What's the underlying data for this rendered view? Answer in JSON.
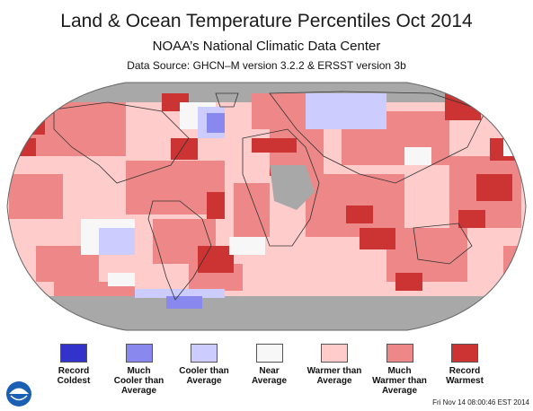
{
  "header": {
    "title": "Land & Ocean Temperature Percentiles Oct 2014",
    "subtitle": "NOAA’s National Climatic Data Center",
    "source": "Data Source: GHCN–M version 3.2.2 & ERSST version 3b"
  },
  "legend": {
    "items": [
      {
        "label": "Record\nColdest",
        "color": "#3333cc"
      },
      {
        "label": "Much\nCooler than\nAverage",
        "color": "#8888ee"
      },
      {
        "label": "Cooler than\nAverage",
        "color": "#ccccff"
      },
      {
        "label": "Near\nAverage",
        "color": "#f7f7f7"
      },
      {
        "label": "Warmer than\nAverage",
        "color": "#ffcccc"
      },
      {
        "label": "Much\nWarmer than\nAverage",
        "color": "#ee8888"
      },
      {
        "label": "Record\nWarmest",
        "color": "#cc3333"
      }
    ]
  },
  "map": {
    "projection": "robinson",
    "missing_color": "#a8a8a8",
    "land_outline_color": "#333333"
  },
  "footer": {
    "logo": "noaa-logo",
    "timestamp": "Fri Nov 14 08:00:46 EST 2014"
  }
}
